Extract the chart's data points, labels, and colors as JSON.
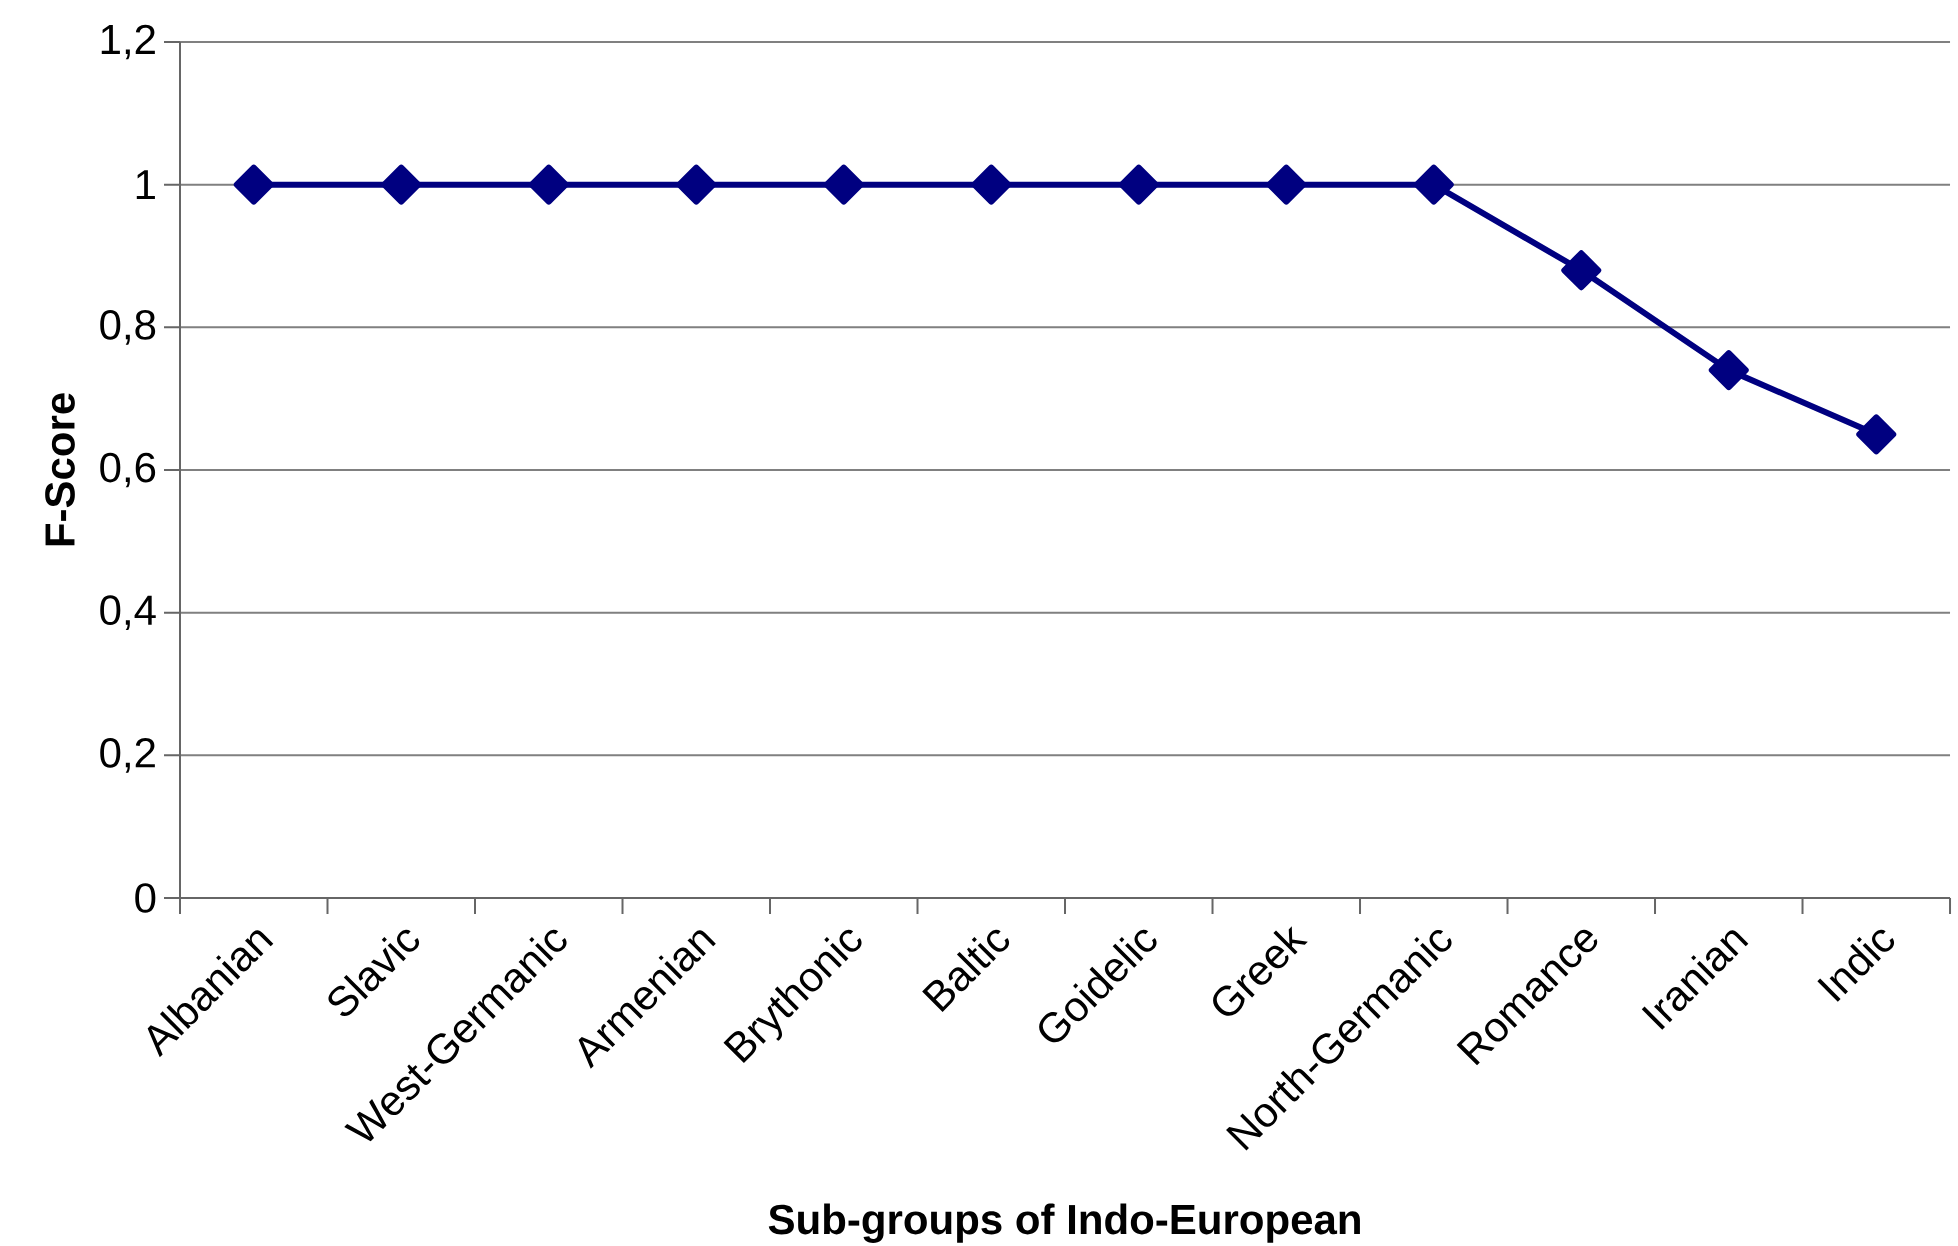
{
  "chart_data": {
    "type": "line",
    "xlabel": "Sub-groups of Indo-European",
    "ylabel": "F-Score",
    "categories": [
      "Albanian",
      "Slavic",
      "West-Germanic",
      "Armenian",
      "Brythonic",
      "Baltic",
      "Goidelic",
      "Greek",
      "North-Germanic",
      "Romance",
      "Iranian",
      "Indic"
    ],
    "series": [
      {
        "color": "#000080",
        "values": [
          1,
          1,
          1,
          1,
          1,
          1,
          1,
          1,
          1,
          0.88,
          0.74,
          0.65
        ]
      }
    ],
    "ylim": [
      0,
      1.2
    ],
    "yticks": [
      0,
      {
        "value": 0.2,
        "label": "0,2"
      },
      {
        "value": 0.4,
        "label": "0,4"
      },
      {
        "value": 0.6,
        "label": "0,6"
      },
      {
        "value": 0.8,
        "label": "0,8"
      },
      1,
      {
        "value": 1.2,
        "label": "1,2"
      }
    ],
    "grid": "y",
    "marker": "diamond",
    "line_style": "solid"
  }
}
